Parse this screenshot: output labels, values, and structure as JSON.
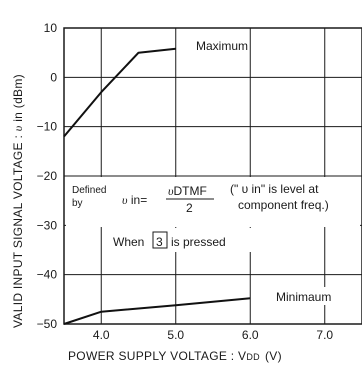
{
  "chart_data": {
    "type": "line",
    "xlabel": "POWER SUPPLY  VOLTAGE : V",
    "xlabel_sub": "DD",
    "xlabel_unit": "(V)",
    "ylabel_pre": "VALID  INPUT  SIGNAL  VOLTAGE : ",
    "ylabel_var": "υ",
    "ylabel_post": " in  (dBm)",
    "xlim": [
      3.5,
      7.5
    ],
    "ylim": [
      -50,
      10
    ],
    "x_ticks": [
      4.0,
      5.0,
      6.0,
      7.0
    ],
    "x_tick_labels": [
      "4.0",
      "5.0",
      "6.0",
      "7.0"
    ],
    "y_ticks": [
      10,
      0,
      -10,
      -20,
      -30,
      -40,
      -50
    ],
    "y_tick_labels": [
      "10",
      "0",
      "−10",
      "−20",
      "−30",
      "−40",
      "−50"
    ],
    "grid": true,
    "series": [
      {
        "name": "Maximum",
        "x": [
          3.5,
          4.0,
          4.5,
          5.0
        ],
        "y": [
          -12,
          -3,
          5,
          5.8
        ]
      },
      {
        "name": "Minimaum",
        "x": [
          3.5,
          4.0,
          5.0,
          6.0
        ],
        "y": [
          -50,
          -47.5,
          -46.2,
          -44.8
        ]
      }
    ],
    "annotations": {
      "defined_by_1": "Defined",
      "defined_by_2": "by",
      "formula_lhs_var": "υ",
      "formula_lhs_rest": " in",
      "formula_eq": "=",
      "formula_num_var": "υ",
      "formula_num_rest": "DTMF",
      "formula_den": "2",
      "level_note_1": "(\" υ in\" is level at",
      "level_note_2": "component freq.)",
      "when_pre": "When",
      "when_key": "3",
      "when_post": "is pressed"
    }
  }
}
